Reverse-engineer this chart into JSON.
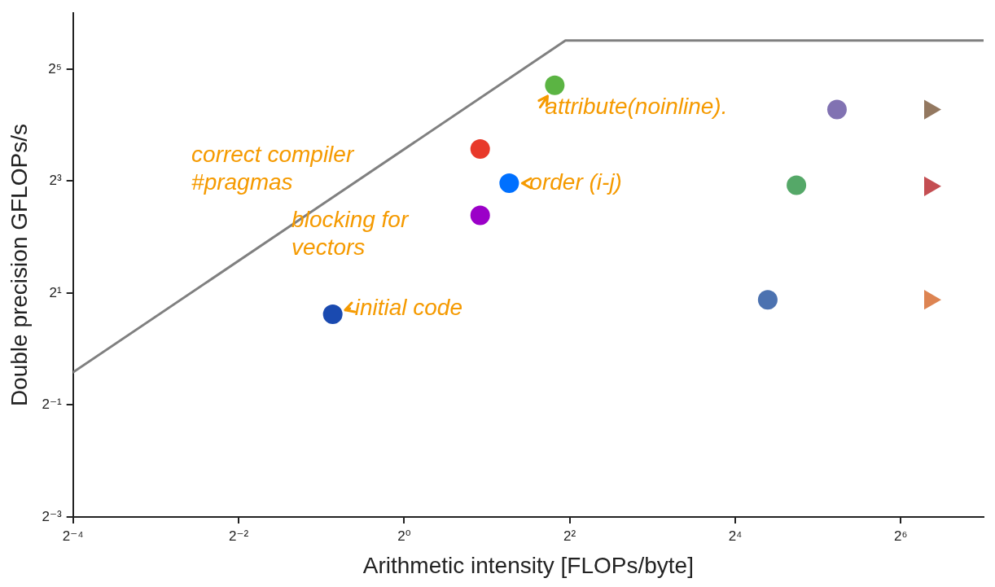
{
  "chart_data": {
    "type": "scatter",
    "xlabel": "Arithmetic intensity [FLOPs/byte]",
    "ylabel": "Double precision GFLOPs/s",
    "log": "xy",
    "grid": false,
    "legend": false,
    "xlim": [
      0.0625,
      128
    ],
    "ylim": [
      0.125,
      64
    ],
    "xticks": [
      {
        "value": 0.0625,
        "label": "2⁻⁴"
      },
      {
        "value": 0.25,
        "label": "2⁻²"
      },
      {
        "value": 1,
        "label": "2⁰"
      },
      {
        "value": 4,
        "label": "2²"
      },
      {
        "value": 16,
        "label": "2⁴"
      },
      {
        "value": 64,
        "label": "2⁶"
      }
    ],
    "yticks": [
      {
        "value": 0.125,
        "label": "2⁻³"
      },
      {
        "value": 0.5,
        "label": "2⁻¹"
      },
      {
        "value": 2,
        "label": "2¹"
      },
      {
        "value": 8,
        "label": "2³"
      },
      {
        "value": 32,
        "label": "2⁵"
      }
    ],
    "series": [
      {
        "type": "line",
        "color": "#808080",
        "marker": "none",
        "line_style": "solid",
        "x": [
          0.0625,
          3.86,
          128
        ],
        "values": [
          0.75,
          45.6,
          45.6
        ]
      },
      {
        "marker": "circle",
        "x": [
          0.55,
          1.89,
          2.41,
          1.89,
          3.53,
          21,
          26.7,
          37.5
        ],
        "values": [
          1.54,
          11.9,
          7.8,
          5.24,
          26.2,
          1.84,
          7.6,
          19.4
        ],
        "colors": [
          "#1a4ab0",
          "#e8392a",
          "#0070ff",
          "#9b00c8",
          "#5bb443",
          "#4c72b0",
          "#55a868",
          "#8172b2"
        ]
      },
      {
        "marker": "triangle",
        "x": [
          81.6,
          81.6,
          81.6
        ],
        "values": [
          19.4,
          7.5,
          1.84
        ],
        "colors": [
          "#937860",
          "#c44e52",
          "#dd8452"
        ]
      }
    ],
    "annotations": [
      "correct compiler #pragmas",
      {
        "text": "attribute(noinline).",
        "x": 3.53,
        "y": 26.2
      },
      "blocking for vectors",
      {
        "text": "order (i-j)",
        "x": 2.41,
        "y": 7.8
      },
      {
        "text": "initial code",
        "x": 0.55,
        "y": 1.54
      }
    ]
  }
}
